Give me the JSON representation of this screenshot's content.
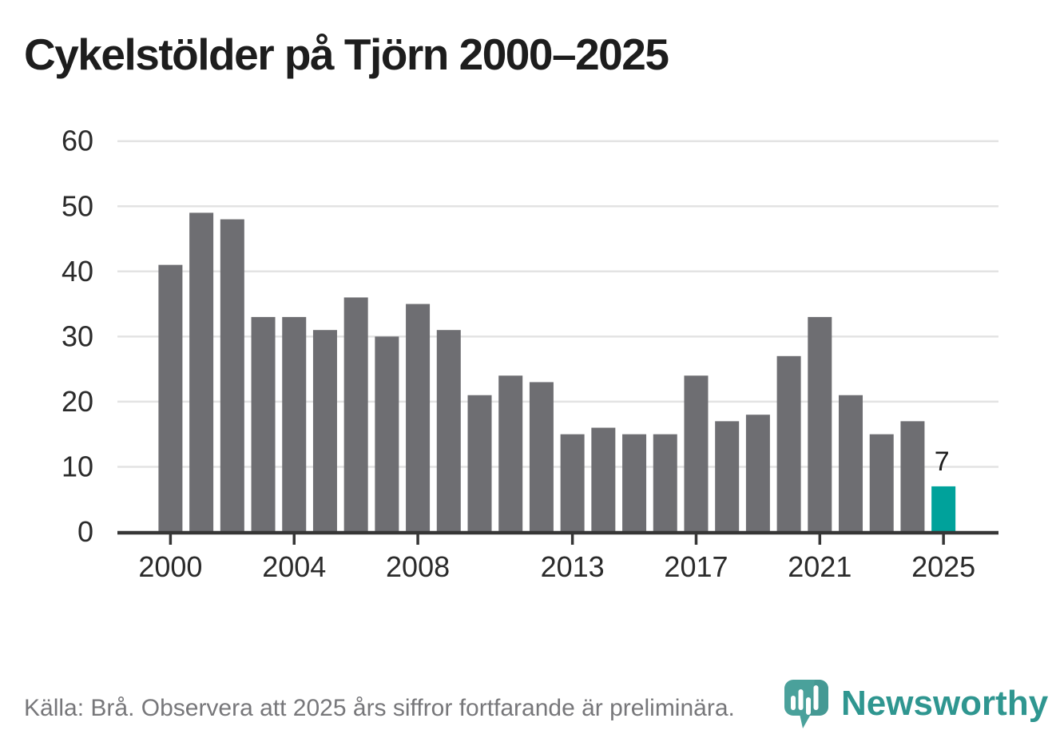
{
  "title": "Cykelstölder på Tjörn 2000–2025",
  "chart_data": {
    "type": "bar",
    "title": "Cykelstölder på Tjörn 2000–2025",
    "x": [
      2000,
      2001,
      2002,
      2003,
      2004,
      2005,
      2006,
      2007,
      2008,
      2009,
      2010,
      2011,
      2012,
      2013,
      2014,
      2015,
      2016,
      2017,
      2018,
      2019,
      2020,
      2021,
      2022,
      2023,
      2024,
      2025
    ],
    "values": [
      41,
      49,
      48,
      33,
      33,
      31,
      36,
      30,
      35,
      31,
      21,
      24,
      23,
      15,
      16,
      15,
      15,
      24,
      17,
      18,
      27,
      33,
      21,
      15,
      17,
      7
    ],
    "highlight_year": 2025,
    "highlight_value_label": "7",
    "xlabel": "",
    "ylabel": "",
    "ylim": [
      0,
      60
    ],
    "yticks": [
      0,
      10,
      20,
      30,
      40,
      50,
      60
    ],
    "xticks": [
      2000,
      2004,
      2008,
      2013,
      2017,
      2021,
      2025
    ],
    "grid": "horizontal-behind-bars",
    "legend": "none",
    "colors": {
      "bar": "#6e6e72",
      "highlight_bar": "#00a29b",
      "gridline": "#e3e3e3",
      "axis_line": "#363636",
      "tick_label": "#2b2b2b",
      "annotation": "#1d1d1d"
    }
  },
  "footer": {
    "text": "Källa: Brå. Observera att 2025 års siffror fortfarande är preliminära."
  },
  "branding": {
    "name": "Newsworthy",
    "wordmark_color": "#2f9690",
    "icon_color": "#4aa19b",
    "icon_shade_color": "#41948e"
  }
}
